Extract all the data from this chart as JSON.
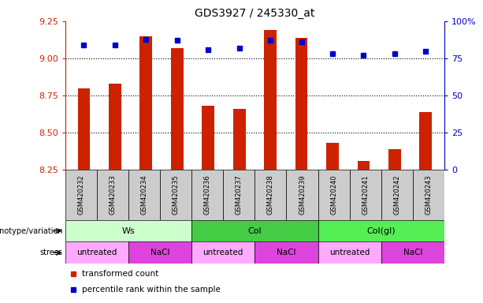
{
  "title": "GDS3927 / 245330_at",
  "samples": [
    "GSM420232",
    "GSM420233",
    "GSM420234",
    "GSM420235",
    "GSM420236",
    "GSM420237",
    "GSM420238",
    "GSM420239",
    "GSM420240",
    "GSM420241",
    "GSM420242",
    "GSM420243"
  ],
  "transformed_count": [
    8.8,
    8.83,
    9.15,
    9.07,
    8.68,
    8.66,
    9.19,
    9.14,
    8.43,
    8.31,
    8.39,
    8.64
  ],
  "percentile_rank": [
    84,
    84,
    88,
    87,
    81,
    82,
    87,
    86,
    78,
    77,
    78,
    80
  ],
  "ylim_left": [
    8.25,
    9.25
  ],
  "ylim_right": [
    0,
    100
  ],
  "yticks_left": [
    8.25,
    8.5,
    8.75,
    9.0,
    9.25
  ],
  "yticks_right": [
    0,
    25,
    50,
    75,
    100
  ],
  "ytick_labels_right": [
    "0",
    "25",
    "50",
    "75",
    "100%"
  ],
  "bar_color": "#cc2200",
  "dot_color": "#0000cc",
  "bar_bottom": 8.25,
  "grid_lines": [
    9.0,
    8.75,
    8.5
  ],
  "genotype_groups": [
    {
      "label": "Ws",
      "start": 0,
      "end": 4,
      "color": "#ccffcc"
    },
    {
      "label": "Col",
      "start": 4,
      "end": 8,
      "color": "#44cc44"
    },
    {
      "label": "Col(gl)",
      "start": 8,
      "end": 12,
      "color": "#55ee55"
    }
  ],
  "stress_groups": [
    {
      "label": "untreated",
      "start": 0,
      "end": 2,
      "color": "#ffaaff"
    },
    {
      "label": "NaCl",
      "start": 2,
      "end": 4,
      "color": "#dd44dd"
    },
    {
      "label": "untreated",
      "start": 4,
      "end": 6,
      "color": "#ffaaff"
    },
    {
      "label": "NaCl",
      "start": 6,
      "end": 8,
      "color": "#dd44dd"
    },
    {
      "label": "untreated",
      "start": 8,
      "end": 10,
      "color": "#ffaaff"
    },
    {
      "label": "NaCl",
      "start": 10,
      "end": 12,
      "color": "#dd44dd"
    }
  ],
  "legend_bar_label": "transformed count",
  "legend_dot_label": "percentile rank within the sample",
  "genotype_label": "genotype/variation",
  "stress_label": "stress",
  "tick_color_left": "#cc2200",
  "tick_color_right": "#0000cc",
  "sample_bg_color": "#cccccc",
  "background_color": "#ffffff",
  "bar_width": 0.4
}
